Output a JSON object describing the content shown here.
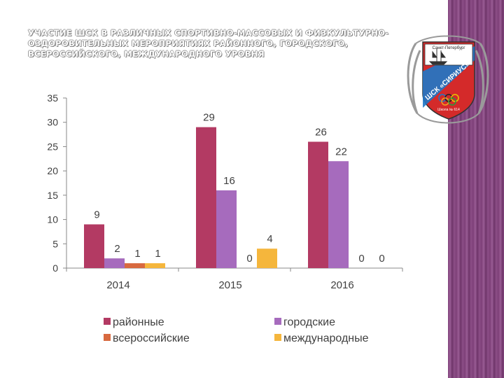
{
  "title": "УЧАСТИЕ ШСК В РАЗЛИЧНЫХ СПОРТИВНО-МАССОВЫХ И ФИЗКУЛЬТУРНО-ОЗДОРОВИТЕЛЬНЫХ МЕРОПРИЯТИЯХ РАЙОННОГО, ГОРОДСКОГО, ВСЕРОССИЙСКОГО, МЕЖДУНАРОДНОГО УРОВНЯ",
  "logo": {
    "text_top": "Санкт-Петербург",
    "text_arc": "ШСК «СИРИУС»",
    "text_bottom": "Школа № 614",
    "colors": {
      "red": "#d42a2a",
      "blue": "#1f78c8",
      "frame": "#9a9a9a"
    }
  },
  "chart_data": {
    "type": "bar",
    "categories": [
      "2014",
      "2015",
      "2016"
    ],
    "series": [
      {
        "name": "районные",
        "values": [
          9,
          29,
          26
        ],
        "color": "#b33a63"
      },
      {
        "name": "городские",
        "values": [
          2,
          16,
          22
        ],
        "color": "#a66bbd"
      },
      {
        "name": "всероссийские",
        "values": [
          1,
          0,
          null
        ],
        "color": "#d8693f"
      },
      {
        "name": "международные",
        "values": [
          1,
          4,
          0
        ],
        "color": "#f5b63c"
      }
    ],
    "data_labels": [
      [
        "9",
        "29",
        "26"
      ],
      [
        "2",
        "16",
        "22"
      ],
      [
        "1",
        "0",
        "0"
      ],
      [
        "1",
        "4",
        "0"
      ]
    ],
    "yticks": [
      "0",
      "5",
      "10",
      "15",
      "20",
      "25",
      "30",
      "35"
    ],
    "ylim": [
      0,
      35
    ],
    "grid": false,
    "legend": "bottom",
    "title": "",
    "xlabel": "",
    "ylabel": ""
  }
}
